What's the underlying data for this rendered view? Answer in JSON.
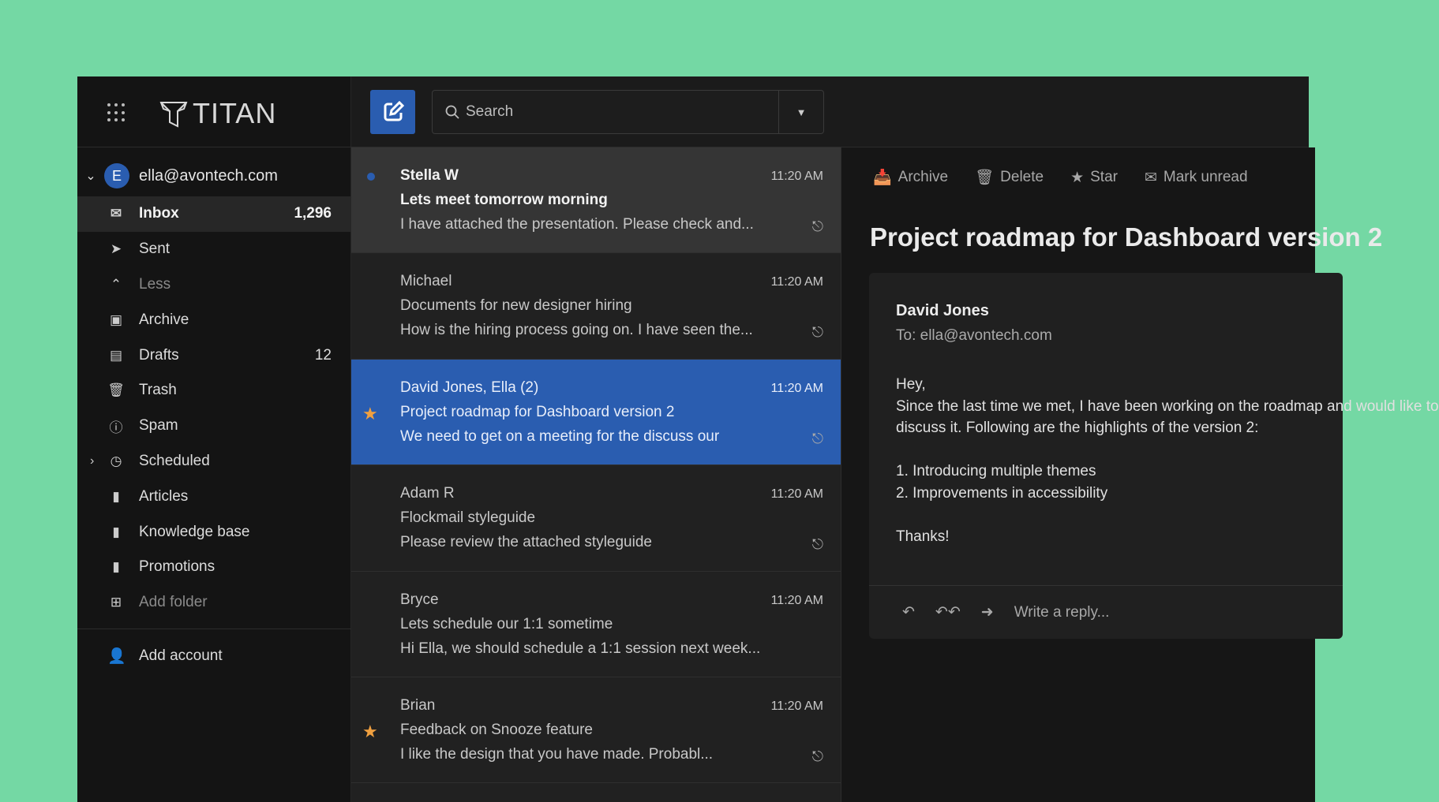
{
  "colors": {
    "background": "#74d8a4",
    "accent": "#2a5db0",
    "star": "#f0a040"
  },
  "app": {
    "name": "TITAN"
  },
  "account": {
    "initial": "E",
    "email": "ella@avontech.com"
  },
  "nav": [
    {
      "label": "Inbox",
      "count": "1,296",
      "icon": "envelope-icon"
    },
    {
      "label": "Sent",
      "icon": "paper-plane-icon"
    },
    {
      "label": "Less",
      "icon": "chevron-up-icon"
    },
    {
      "label": "Archive",
      "icon": "archive-icon"
    },
    {
      "label": "Drafts",
      "count": "12",
      "icon": "drafts-icon"
    },
    {
      "label": "Trash",
      "icon": "trash-icon"
    },
    {
      "label": "Spam",
      "icon": "alert-icon"
    },
    {
      "label": "Scheduled",
      "icon": "clock-icon"
    },
    {
      "label": "Articles",
      "icon": "folder-icon"
    },
    {
      "label": "Knowledge base",
      "icon": "folder-icon"
    },
    {
      "label": "Promotions",
      "icon": "folder-icon"
    },
    {
      "label": "Add folder",
      "icon": "plus-icon"
    }
  ],
  "add_account": "Add account",
  "search": {
    "placeholder": "Search"
  },
  "emails": [
    {
      "sender": "Stella W",
      "time": "11:20 AM",
      "subject": "Lets meet tomorrow morning",
      "preview": "I have attached the presentation. Please check and...",
      "unread": true,
      "attachment": true
    },
    {
      "sender": "Michael",
      "time": "11:20 AM",
      "subject": "Documents for new designer hiring",
      "preview": "How is the hiring process going on. I have seen the...",
      "attachment": true
    },
    {
      "sender": "David Jones, Ella (2)",
      "time": "11:20 AM",
      "subject": "Project roadmap for Dashboard version 2",
      "preview": "We need to get on a meeting for the discuss our",
      "selected": true,
      "starred": true,
      "attachment": true
    },
    {
      "sender": "Adam R",
      "time": "11:20 AM",
      "subject": "Flockmail styleguide",
      "preview": "Please review the attached styleguide",
      "attachment": true
    },
    {
      "sender": "Bryce",
      "time": "11:20 AM",
      "subject": "Lets schedule our 1:1 sometime",
      "preview": "Hi Ella, we should schedule a 1:1 session next week..."
    },
    {
      "sender": "Brian",
      "time": "11:20 AM",
      "subject": "Feedback on Snooze feature",
      "preview": "I like the design that you have made. Probabl...",
      "starred": true,
      "attachment": true
    }
  ],
  "reader": {
    "actions": [
      "Archive",
      "Delete",
      "Star",
      "Mark unread"
    ],
    "title": "Project roadmap for Dashboard version 2",
    "from": "David Jones",
    "to": "To: ella@avontech.com",
    "body": "Hey,\nSince the last time we met, I have been working on the roadmap and would like to\ndiscuss it. Following are the highlights of the version 2:\n\n1. Introducing multiple themes\n2. Improvements in accessibility\n\nThanks!",
    "reply_placeholder": "Write a reply..."
  }
}
